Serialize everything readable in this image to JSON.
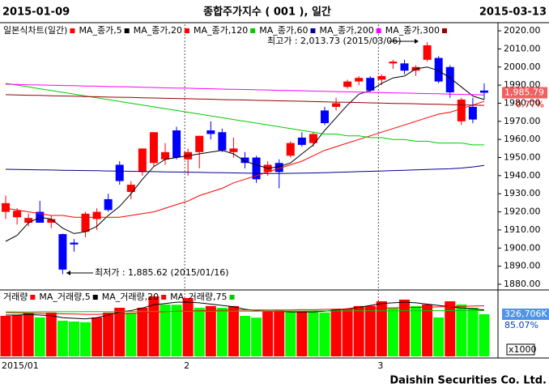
{
  "header": {
    "start_date": "2015-01-09",
    "title": "종합주가지수 ( 001 ), 일간",
    "end_date": "2015-03-13"
  },
  "footer": "Daishin Securities Co. Ltd.",
  "chart_data": [
    {
      "type": "candlestick",
      "categories": [
        "2015/01",
        null,
        null,
        null,
        null,
        null,
        null,
        null,
        null,
        null,
        null,
        null,
        null,
        null,
        null,
        null,
        "2",
        null,
        null,
        null,
        null,
        null,
        null,
        null,
        null,
        null,
        null,
        null,
        null,
        null,
        null,
        null,
        null,
        "3",
        null,
        null,
        null,
        null,
        null,
        null,
        null,
        null,
        null
      ],
      "ylim": [
        1878.2,
        2023.6
      ],
      "yticks": [
        {
          "value": 1880,
          "label": "1880.00"
        },
        {
          "value": 1890,
          "label": "1890.00"
        },
        {
          "value": 1900,
          "label": "1900.00"
        },
        {
          "value": 1910,
          "label": "1910.00"
        },
        {
          "value": 1920,
          "label": "1920.00"
        },
        {
          "value": 1930,
          "label": "1930.00"
        },
        {
          "value": 1940,
          "label": "1940.00"
        },
        {
          "value": 1950,
          "label": "1950.00"
        },
        {
          "value": 1960,
          "label": "1960.00"
        },
        {
          "value": 1970,
          "label": "1970.00"
        },
        {
          "value": 1980,
          "label": "1980.00"
        },
        {
          "value": 1990,
          "label": "1990.00"
        },
        {
          "value": 2000,
          "label": "2000.00"
        },
        {
          "value": 2010,
          "label": "2010.00"
        },
        {
          "value": 2020,
          "label": "2020.00"
        }
      ],
      "up_color": "#ff0000",
      "down_color": "#0000ff",
      "series": [
        {
          "name": "일본식차트(일간)",
          "color": "#ff0000",
          "open": [
            1920,
            1917,
            1914,
            1920,
            1914,
            1907.7,
            1903,
            1909,
            1916,
            1927,
            1946,
            1931,
            1942,
            1947,
            1949,
            1965,
            1949,
            1953,
            1965,
            1964,
            1953,
            1950,
            1950,
            1942,
            1947,
            1951,
            1961,
            1958,
            1976,
            1978,
            1989,
            1992,
            1994,
            1993,
            2002,
            2002,
            1998,
            2004,
            2005,
            2000,
            1970,
            1978,
            1987
          ],
          "high": [
            1929,
            1922,
            1919,
            1926,
            1918,
            1908,
            1905,
            1920,
            1922,
            1930,
            1948,
            1937,
            1955,
            1964,
            1958,
            1967,
            1955,
            1962,
            1970,
            1966,
            1961,
            1953,
            1951,
            1948,
            1949,
            1959,
            1964,
            1964,
            1978,
            1983,
            1993,
            1995,
            1995,
            1996,
            2004,
            2004,
            2001,
            2013.73,
            2006,
            2001,
            1983,
            1983,
            1991
          ],
          "low": [
            1916,
            1913,
            1912,
            1914,
            1911,
            1885.62,
            1898,
            1906,
            1910,
            1920,
            1935,
            1927,
            1940,
            1945,
            1946,
            1949,
            1940,
            1944,
            1960,
            1953,
            1950,
            1944,
            1936,
            1940,
            1933,
            1950,
            1956,
            1956,
            1968,
            1976,
            1988,
            1990,
            1986,
            1990,
            1999,
            1996,
            1995,
            2003,
            1991,
            1983,
            1968,
            1969,
            1982
          ],
          "close": [
            1924.8,
            1920.6,
            1916.6,
            1914,
            1916,
            1888.1,
            1902,
            1919,
            1920,
            1921,
            1937,
            1935,
            1955,
            1964,
            1953,
            1950,
            1953,
            1962,
            1963,
            1954,
            1955,
            1947,
            1938,
            1946,
            1942,
            1958,
            1957,
            1963,
            1969,
            1980,
            1992,
            1994,
            1987,
            1995,
            2003,
            1998,
            2000,
            2012,
            1992,
            1986,
            1982,
            1971,
            1985.79
          ]
        },
        {
          "name": "MA_종가,5",
          "color": "#000000",
          "values": [
            1903.7,
            1907,
            1914,
            1917,
            1916,
            1911,
            1908,
            1909,
            1912,
            1918,
            1923,
            1930,
            1938,
            1945,
            1949,
            1950,
            1951,
            1952,
            1953,
            1954,
            1952,
            1948,
            1946,
            1944,
            1945,
            1947,
            1952,
            1957,
            1965,
            1972,
            1979,
            1985,
            1987,
            1991,
            1994,
            1995,
            1999,
            2000,
            1998,
            1994,
            1989,
            1984,
            1982
          ]
        },
        {
          "name": "MA_종가,20",
          "color": "#ff0000",
          "values": [
            1922,
            1921,
            1920,
            1919,
            1918,
            1918,
            1917,
            1917,
            1917,
            1917,
            1917,
            1918,
            1919,
            1920,
            1922,
            1924,
            1926,
            1929,
            1931,
            1933,
            1936,
            1938,
            1940,
            1942,
            1944,
            1946,
            1948,
            1951,
            1954,
            1956,
            1958,
            1960,
            1962,
            1964,
            1966,
            1968,
            1970,
            1972,
            1974,
            1975,
            1977,
            1979,
            1981
          ]
        },
        {
          "name": "MA_종가,120",
          "color": "#00cc00",
          "values": [
            1991,
            1990,
            1989,
            1988,
            1987,
            1986,
            1985,
            1984,
            1983,
            1982,
            1981,
            1980,
            1979,
            1978,
            1977,
            1976,
            1975,
            1974,
            1973,
            1972,
            1971,
            1970,
            1969,
            1968,
            1967,
            1966,
            1965,
            1964,
            1963,
            1963,
            1962,
            1962,
            1961,
            1961,
            1960,
            1960,
            1959,
            1959,
            1958,
            1958,
            1958,
            1957,
            1957
          ]
        },
        {
          "name": "MA_종가,60",
          "color": "#000099",
          "values": [
            1943.5,
            1943.4,
            1943.3,
            1943.2,
            1943.1,
            1943,
            1942.9,
            1942.8,
            1942.7,
            1942.6,
            1942.5,
            1942.4,
            1942.3,
            1942.2,
            1942.1,
            1942,
            1941.9,
            1941.8,
            1941.7,
            1941.6,
            1941.5,
            1941.4,
            1941.3,
            1941.2,
            1941.2,
            1941.3,
            1941.4,
            1941.5,
            1941.6,
            1941.8,
            1942,
            1942.2,
            1942.4,
            1942.6,
            1942.8,
            1943,
            1943.2,
            1943.4,
            1943.6,
            1943.8,
            1944.2,
            1944.8,
            1945.6
          ]
        },
        {
          "name": "MA_종가,200",
          "color": "#ff00ff",
          "values": [
            1990.5,
            1990.4,
            1990.2,
            1990.1,
            1989.9,
            1989.8,
            1989.7,
            1989.5,
            1989.4,
            1989.2,
            1989.1,
            1989,
            1988.8,
            1988.7,
            1988.5,
            1988.4,
            1988.3,
            1988.1,
            1988,
            1987.8,
            1987.7,
            1987.6,
            1987.4,
            1987.3,
            1987.1,
            1987,
            1986.9,
            1986.7,
            1986.6,
            1986.4,
            1986.3,
            1986.2,
            1986,
            1985.9,
            1985.7,
            1985.6,
            1985.5,
            1985.3,
            1985.2,
            1985,
            1984.9,
            1984.8,
            1984.6
          ]
        },
        {
          "name": "MA_종가,300",
          "color": "#990000",
          "values": [
            1984.7,
            1984.6,
            1984.4,
            1984.3,
            1984.1,
            1984,
            1983.9,
            1983.7,
            1983.6,
            1983.4,
            1983.3,
            1983.2,
            1983,
            1982.9,
            1982.7,
            1982.6,
            1982.5,
            1982.3,
            1982.2,
            1982,
            1981.9,
            1981.8,
            1981.6,
            1981.5,
            1981.3,
            1981.2,
            1981.1,
            1980.9,
            1980.8,
            1980.6,
            1980.5,
            1980.4,
            1980.2,
            1980.1,
            1979.9,
            1979.8,
            1979.7,
            1979.5,
            1979.4,
            1979.2,
            1979.1,
            1979,
            1978.8
          ]
        }
      ],
      "last_price": {
        "value": 1985.79,
        "label": "1,985.79"
      },
      "change": "0.77%",
      "annotations": [
        {
          "text": "최고가 : 2,013.73 (2015/03/06)",
          "color": "#ff0000"
        },
        {
          "text": "최저가 : 1,885.62 (2015/01/16)",
          "color": "#0000cc"
        }
      ]
    },
    {
      "type": "bar",
      "ylim": [
        0,
        471000
      ],
      "up_color": "#ff0000",
      "down_color": "#00ff00",
      "series": [
        {
          "name": "거래량",
          "color": "#ff0000",
          "values": [
            314000,
            320000,
            339000,
            302000,
            339000,
            276000,
            270000,
            265000,
            302000,
            339000,
            377000,
            339000,
            377000,
            465000,
            402000,
            400000,
            452000,
            377000,
            390000,
            377000,
            390000,
            314000,
            300000,
            352000,
            356000,
            345000,
            352000,
            345000,
            340000,
            364000,
            366000,
            390000,
            392000,
            427000,
            377000,
            440000,
            390000,
            402000,
            302000,
            427000,
            402000,
            377000,
            326706
          ]
        },
        {
          "name": "MA_거래량,5",
          "color": "#000000",
          "values": [
            320000,
            320000,
            325000,
            320000,
            315000,
            300000,
            295000,
            290000,
            300000,
            320000,
            345000,
            355000,
            375000,
            400000,
            410000,
            420000,
            420000,
            415000,
            405000,
            395000,
            385000,
            365000,
            355000,
            350000,
            350000,
            345000,
            345000,
            345000,
            350000,
            360000,
            370000,
            380000,
            395000,
            410000,
            415000,
            420000,
            415000,
            405000,
            395000,
            385000,
            375000,
            370000,
            360000
          ]
        },
        {
          "name": "MA_거래량,20",
          "color": "#ff0000",
          "values": [
            340000,
            338000,
            336000,
            334000,
            332000,
            330000,
            328000,
            326000,
            326000,
            328000,
            330000,
            334000,
            338000,
            342000,
            346000,
            350000,
            352000,
            354000,
            356000,
            358000,
            360000,
            360000,
            360000,
            360000,
            360000,
            360000,
            362000,
            362000,
            364000,
            366000,
            368000,
            370000,
            372000,
            374000,
            376000,
            378000,
            380000,
            382000,
            384000,
            386000,
            388000,
            390000,
            392000
          ]
        },
        {
          "name": "MA_거래량,75",
          "color": "#00cc00",
          "values": [
            345000,
            345000,
            345000,
            346000,
            346000,
            346000,
            346000,
            347000,
            347000,
            347000,
            347000,
            348000,
            348000,
            348000,
            348000,
            349000,
            349000,
            349000,
            349000,
            350000,
            350000,
            350000,
            350000,
            351000,
            351000,
            351000,
            351000,
            352000,
            352000,
            352000,
            352000,
            353000,
            353000,
            353000,
            353000,
            354000,
            354000,
            354000,
            354000,
            355000,
            355000,
            355000,
            355000
          ]
        }
      ],
      "last_volume_label": "326,706K",
      "ratio": "85.07%",
      "unit": "x1000"
    }
  ]
}
